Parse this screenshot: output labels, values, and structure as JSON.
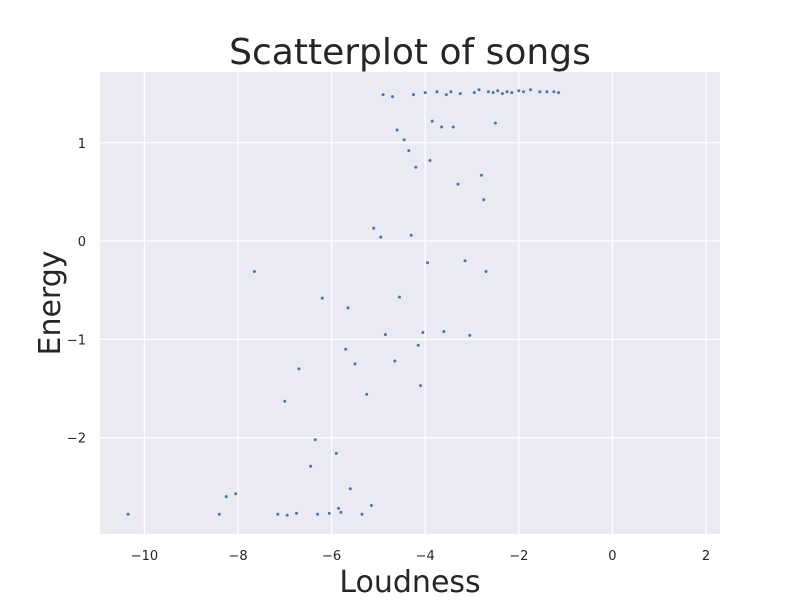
{
  "colors": {
    "plot_background": "#eaeaf2",
    "gridline": "#ffffff",
    "marker": "#4c72b0",
    "text": "#262626"
  },
  "chart_data": {
    "type": "scatter",
    "title": "Scatterplot of songs",
    "xlabel": "Loudness",
    "ylabel": "Energy",
    "xlim": [
      -10.95,
      2.3
    ],
    "ylim": [
      -2.98,
      1.72
    ],
    "xticks": [
      -10,
      -8,
      -6,
      -4,
      -2,
      0,
      2
    ],
    "yticks": [
      -2,
      -1,
      0,
      1
    ],
    "xtick_labels": [
      "−10",
      "−8",
      "−6",
      "−4",
      "−2",
      "0",
      "2"
    ],
    "ytick_labels": [
      "−2",
      "−1",
      "0",
      "1"
    ],
    "grid": true,
    "series": [
      {
        "points": [
          [
            -10.35,
            -2.78
          ],
          [
            -8.4,
            -2.78
          ],
          [
            -8.25,
            -2.6
          ],
          [
            -8.05,
            -2.57
          ],
          [
            -7.65,
            -0.31
          ],
          [
            -7.15,
            -2.78
          ],
          [
            -7.0,
            -1.63
          ],
          [
            -6.95,
            -2.79
          ],
          [
            -6.75,
            -2.77
          ],
          [
            -6.7,
            -1.3
          ],
          [
            -6.45,
            -2.29
          ],
          [
            -6.35,
            -2.02
          ],
          [
            -6.3,
            -2.78
          ],
          [
            -6.2,
            -0.58
          ],
          [
            -6.05,
            -2.77
          ],
          [
            -5.9,
            -2.16
          ],
          [
            -5.85,
            -2.72
          ],
          [
            -5.8,
            -2.76
          ],
          [
            -5.7,
            -1.1
          ],
          [
            -5.65,
            -0.68
          ],
          [
            -5.6,
            -2.52
          ],
          [
            -5.5,
            -1.25
          ],
          [
            -5.35,
            -2.78
          ],
          [
            -5.25,
            -1.56
          ],
          [
            -5.15,
            -2.69
          ],
          [
            -5.1,
            0.13
          ],
          [
            -4.95,
            0.04
          ],
          [
            -4.9,
            1.49
          ],
          [
            -4.85,
            -0.95
          ],
          [
            -4.7,
            1.47
          ],
          [
            -4.65,
            -1.22
          ],
          [
            -4.6,
            1.13
          ],
          [
            -4.55,
            -0.57
          ],
          [
            -4.45,
            1.03
          ],
          [
            -4.35,
            0.92
          ],
          [
            -4.3,
            0.06
          ],
          [
            -4.25,
            1.49
          ],
          [
            -4.2,
            0.75
          ],
          [
            -4.15,
            -1.06
          ],
          [
            -4.1,
            -1.47
          ],
          [
            -4.05,
            -0.93
          ],
          [
            -4.0,
            1.51
          ],
          [
            -3.95,
            -0.22
          ],
          [
            -3.9,
            0.82
          ],
          [
            -3.85,
            1.22
          ],
          [
            -3.75,
            1.52
          ],
          [
            -3.65,
            1.16
          ],
          [
            -3.6,
            -0.92
          ],
          [
            -3.55,
            1.49
          ],
          [
            -3.45,
            1.52
          ],
          [
            -3.4,
            1.16
          ],
          [
            -3.3,
            0.58
          ],
          [
            -3.25,
            1.5
          ],
          [
            -3.15,
            -0.2
          ],
          [
            -3.05,
            -0.96
          ],
          [
            -2.95,
            1.51
          ],
          [
            -2.85,
            1.54
          ],
          [
            -2.8,
            0.67
          ],
          [
            -2.75,
            0.42
          ],
          [
            -2.7,
            -0.31
          ],
          [
            -2.65,
            1.52
          ],
          [
            -2.55,
            1.51
          ],
          [
            -2.5,
            1.2
          ],
          [
            -2.45,
            1.53
          ],
          [
            -2.35,
            1.5
          ],
          [
            -2.25,
            1.52
          ],
          [
            -2.15,
            1.51
          ],
          [
            -2.0,
            1.53
          ],
          [
            -1.9,
            1.52
          ],
          [
            -1.75,
            1.54
          ],
          [
            -1.55,
            1.52
          ],
          [
            -1.4,
            1.52
          ],
          [
            -1.25,
            1.52
          ],
          [
            -1.15,
            1.51
          ]
        ]
      }
    ]
  }
}
